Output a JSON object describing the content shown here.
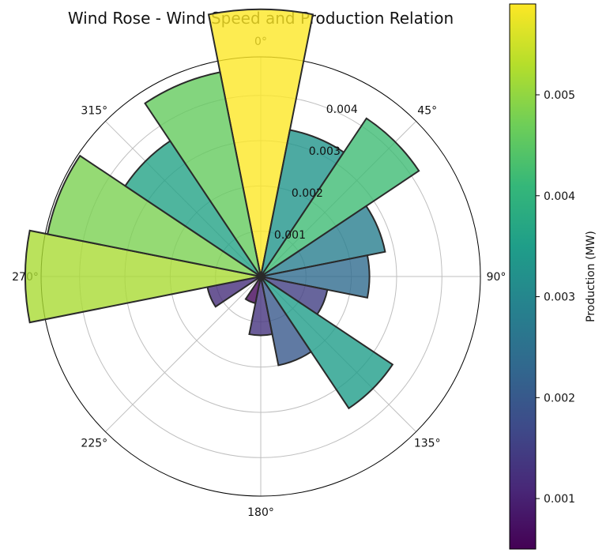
{
  "chart_data": {
    "type": "polar-bar",
    "title": "Wind Rose - Wind Speed and Production Relation",
    "theta_direction": "clockwise",
    "theta_zero": "N",
    "angle_ticks": [
      "0°",
      "45°",
      "90°",
      "135°",
      "180°",
      "225°",
      "270°",
      "315°"
    ],
    "r_ticks": [
      0.001,
      0.002,
      0.003,
      0.004
    ],
    "r_tick_labels": [
      "0.001",
      "0.002",
      "0.003",
      "0.004"
    ],
    "r_max": 0.00485,
    "bin_width_deg": 22.5,
    "directions_deg": [
      0,
      22.5,
      45,
      67.5,
      90,
      112.5,
      135,
      157.5,
      180,
      202.5,
      225,
      247.5,
      270,
      292.5,
      315,
      337.5
    ],
    "values": [
      0.0059,
      0.0033,
      0.0042,
      0.0028,
      0.0024,
      0.0015,
      0.0035,
      0.002,
      0.0013,
      0.0006,
      0.0,
      0.0012,
      0.0052,
      0.0048,
      0.0036,
      0.0046
    ],
    "colorbar": {
      "label": "Production (MW)",
      "colormap": "viridis",
      "vmin": 0.0005,
      "vmax": 0.0059,
      "ticks": [
        0.001,
        0.002,
        0.003,
        0.004,
        0.005
      ],
      "tick_labels": [
        "0.001",
        "0.002",
        "0.003",
        "0.004",
        "0.005"
      ]
    },
    "grid": true,
    "edge_color": "#2a2a2a"
  }
}
